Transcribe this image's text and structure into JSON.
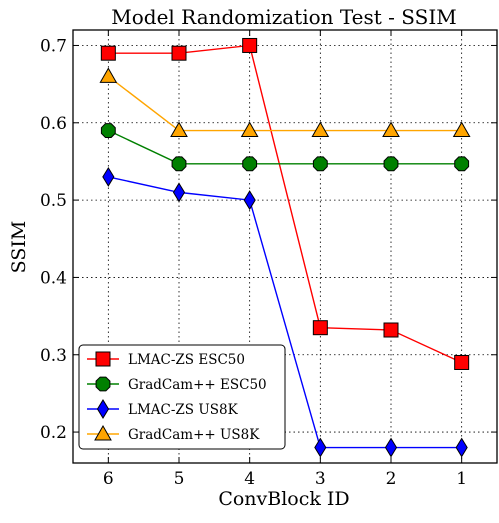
{
  "chart_data": {
    "type": "line",
    "title": "Model Randomization Test - SSIM",
    "xlabel": "ConvBlock ID",
    "ylabel": "SSIM",
    "categories": [
      "6",
      "5",
      "4",
      "3",
      "2",
      "1"
    ],
    "ylim": [
      0.16,
      0.72
    ],
    "yticks": [
      "0.2",
      "0.3",
      "0.4",
      "0.5",
      "0.6",
      "0.7"
    ],
    "grid": true,
    "legend_position": "lower-left",
    "series": [
      {
        "name": "LMAC-ZS ESC50",
        "color": "#ff0000",
        "marker": "square",
        "values": [
          0.69,
          0.69,
          0.7,
          0.335,
          0.332,
          0.29
        ]
      },
      {
        "name": "GradCam++ ESC50",
        "color": "#008000",
        "marker": "octagon",
        "values": [
          0.59,
          0.547,
          0.547,
          0.547,
          0.547,
          0.547
        ]
      },
      {
        "name": "LMAC-ZS US8K",
        "color": "#0000ff",
        "marker": "diamond",
        "values": [
          0.53,
          0.51,
          0.5,
          0.18,
          0.18,
          0.18
        ]
      },
      {
        "name": "GradCam++ US8K",
        "color": "#ffa500",
        "marker": "triangle",
        "values": [
          0.66,
          0.59,
          0.59,
          0.59,
          0.59,
          0.59
        ]
      }
    ]
  }
}
